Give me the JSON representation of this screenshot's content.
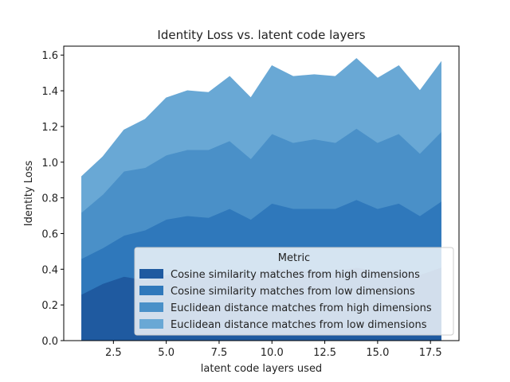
{
  "chart_data": {
    "type": "area",
    "stacked": true,
    "title": "Identity Loss vs. latent code layers",
    "xlabel": "latent code layers used",
    "ylabel": "Identity Loss",
    "xlim": [
      0.15,
      18.85
    ],
    "ylim": [
      0,
      1.65
    ],
    "xticks": [
      2.5,
      5.0,
      7.5,
      10.0,
      12.5,
      15.0,
      17.5
    ],
    "xtick_labels": [
      "2.5",
      "5.0",
      "7.5",
      "10.0",
      "12.5",
      "15.0",
      "17.5"
    ],
    "yticks": [
      0.0,
      0.2,
      0.4,
      0.6,
      0.8,
      1.0,
      1.2,
      1.4,
      1.6
    ],
    "ytick_labels": [
      "0.0",
      "0.2",
      "0.4",
      "0.6",
      "0.8",
      "1.0",
      "1.2",
      "1.4",
      "1.6"
    ],
    "grid": false,
    "legend": {
      "title": "Metric",
      "placement": "lower-right"
    },
    "x": [
      1,
      2,
      3,
      4,
      5,
      6,
      7,
      8,
      9,
      10,
      11,
      12,
      13,
      14,
      15,
      16,
      17,
      18
    ],
    "series": [
      {
        "name": "Cosine similarity matches from high dimensions",
        "color": "#1f5aa0",
        "values": [
          0.26,
          0.32,
          0.36,
          0.34,
          0.37,
          0.38,
          0.37,
          0.39,
          0.36,
          0.4,
          0.4,
          0.39,
          0.39,
          0.41,
          0.39,
          0.4,
          0.37,
          0.41
        ]
      },
      {
        "name": "Cosine similarity matches from low dimensions",
        "color": "#2f78bb",
        "values": [
          0.2,
          0.2,
          0.23,
          0.28,
          0.31,
          0.32,
          0.32,
          0.35,
          0.32,
          0.37,
          0.34,
          0.35,
          0.35,
          0.38,
          0.35,
          0.37,
          0.33,
          0.37
        ]
      },
      {
        "name": "Euclidean distance matches from high dimensions",
        "color": "#4a90c8",
        "values": [
          0.26,
          0.3,
          0.36,
          0.35,
          0.36,
          0.37,
          0.38,
          0.38,
          0.34,
          0.39,
          0.37,
          0.39,
          0.37,
          0.4,
          0.37,
          0.39,
          0.35,
          0.39
        ]
      },
      {
        "name": "Euclidean distance matches from low dimensions",
        "color": "#69a8d5",
        "values": [
          0.2,
          0.21,
          0.23,
          0.27,
          0.32,
          0.33,
          0.32,
          0.36,
          0.34,
          0.38,
          0.37,
          0.36,
          0.37,
          0.39,
          0.36,
          0.38,
          0.35,
          0.39
        ]
      }
    ]
  }
}
